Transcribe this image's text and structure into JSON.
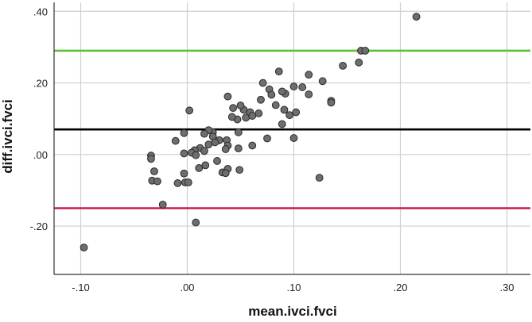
{
  "chart_data": {
    "type": "scatter",
    "title": "",
    "xlabel": "mean.ivci.fvci",
    "ylabel": "diff.ivci.fvci",
    "xlim": [
      -0.125,
      0.322
    ],
    "ylim": [
      -0.335,
      0.425
    ],
    "xticks": [
      -0.1,
      0.0,
      0.1,
      0.2,
      0.3
    ],
    "xtick_labels": [
      "-.10",
      ".00",
      ".10",
      ".20",
      ".30"
    ],
    "yticks": [
      0.4,
      0.2,
      0.0,
      -0.2
    ],
    "ytick_labels": [
      ".40",
      ".20",
      ".00",
      "-.20"
    ],
    "grid": true,
    "reference_lines": [
      {
        "name": "upper-limit-line",
        "y": 0.29,
        "color": "#5cbf3a"
      },
      {
        "name": "mean-difference-line",
        "y": 0.07,
        "color": "#000000"
      },
      {
        "name": "lower-limit-line",
        "y": -0.15,
        "color": "#cc1e46"
      }
    ],
    "points": [
      [
        -0.097,
        -0.26
      ],
      [
        0.215,
        0.385
      ],
      [
        0.163,
        0.29
      ],
      [
        0.167,
        0.29
      ],
      [
        0.161,
        0.257
      ],
      [
        0.146,
        0.248
      ],
      [
        0.127,
        0.205
      ],
      [
        0.114,
        0.223
      ],
      [
        0.1,
        0.19
      ],
      [
        0.108,
        0.188
      ],
      [
        0.135,
        0.15
      ],
      [
        0.135,
        0.145
      ],
      [
        0.114,
        0.168
      ],
      [
        0.086,
        0.232
      ],
      [
        0.071,
        0.2
      ],
      [
        0.092,
        0.17
      ],
      [
        0.089,
        0.176
      ],
      [
        0.077,
        0.182
      ],
      [
        0.079,
        0.167
      ],
      [
        0.083,
        0.138
      ],
      [
        0.069,
        0.153
      ],
      [
        0.091,
        0.125
      ],
      [
        0.102,
        0.118
      ],
      [
        0.096,
        0.11
      ],
      [
        0.067,
        0.115
      ],
      [
        0.059,
        0.118
      ],
      [
        0.053,
        0.125
      ],
      [
        0.05,
        0.137
      ],
      [
        0.043,
        0.13
      ],
      [
        0.038,
        0.162
      ],
      [
        0.055,
        0.103
      ],
      [
        0.061,
        0.108
      ],
      [
        0.047,
        0.098
      ],
      [
        0.042,
        0.105
      ],
      [
        0.089,
        0.085
      ],
      [
        0.1,
        0.046
      ],
      [
        0.075,
        0.045
      ],
      [
        0.061,
        0.025
      ],
      [
        0.048,
        0.062
      ],
      [
        0.037,
        0.04
      ],
      [
        0.038,
        0.025
      ],
      [
        0.048,
        0.017
      ],
      [
        0.036,
        0.015
      ],
      [
        0.03,
        0.04
      ],
      [
        0.024,
        0.062
      ],
      [
        0.02,
        0.068
      ],
      [
        0.016,
        0.058
      ],
      [
        0.024,
        0.05
      ],
      [
        0.026,
        0.034
      ],
      [
        0.02,
        0.028
      ],
      [
        0.012,
        0.018
      ],
      [
        0.016,
        0.01
      ],
      [
        0.007,
        0.012
      ],
      [
        0.004,
        0.005
      ],
      [
        0.008,
        -0.002
      ],
      [
        -0.003,
        0.06
      ],
      [
        -0.011,
        0.038
      ],
      [
        0.002,
        0.123
      ],
      [
        -0.003,
        0.003
      ],
      [
        0.028,
        -0.018
      ],
      [
        0.017,
        -0.03
      ],
      [
        0.011,
        -0.038
      ],
      [
        0.038,
        -0.04
      ],
      [
        0.049,
        -0.043
      ],
      [
        0.033,
        -0.05
      ],
      [
        0.036,
        -0.052
      ],
      [
        -0.034,
        -0.003
      ],
      [
        -0.034,
        -0.012
      ],
      [
        -0.031,
        -0.047
      ],
      [
        -0.033,
        -0.073
      ],
      [
        -0.028,
        -0.075
      ],
      [
        -0.003,
        -0.053
      ],
      [
        -0.002,
        -0.078
      ],
      [
        -0.009,
        -0.08
      ],
      [
        0.001,
        -0.078
      ],
      [
        0.124,
        -0.065
      ],
      [
        -0.023,
        -0.14
      ],
      [
        0.008,
        -0.19
      ]
    ]
  }
}
